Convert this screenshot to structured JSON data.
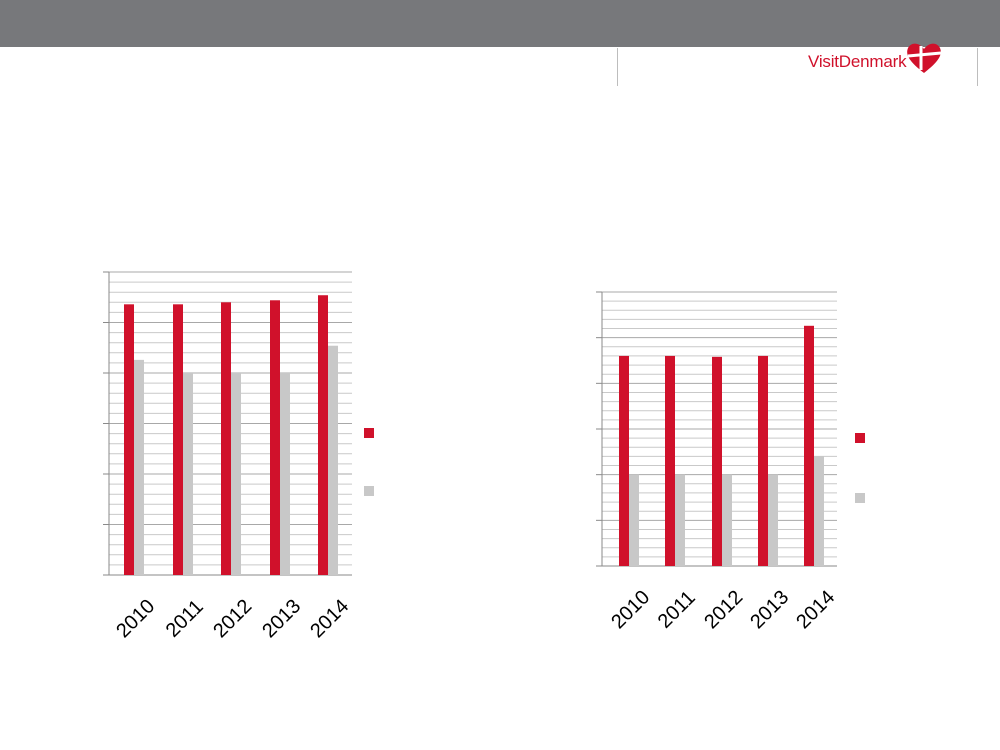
{
  "brand": {
    "name": "VisitDenmark",
    "accent_color": "#d0112b",
    "secondary_color": "#c8c8c8",
    "header_bar_color": "#77787b",
    "logo_icon": "heart-flag-icon"
  },
  "chart_data": [
    {
      "type": "bar",
      "title": "",
      "xlabel": "",
      "ylabel": "",
      "categories": [
        "2010",
        "2011",
        "2012",
        "2013",
        "2014"
      ],
      "ylim": [
        0,
        30
      ],
      "major_tick_step": 5,
      "minor_tick_step": 1,
      "grid": true,
      "legend": "right",
      "series": [
        {
          "color": "#d0112b",
          "values": [
            26.8,
            26.8,
            27.0,
            27.2,
            27.7
          ]
        },
        {
          "color": "#c8c8c8",
          "values": [
            21.3,
            20.0,
            20.0,
            20.0,
            22.7
          ]
        }
      ]
    },
    {
      "type": "bar",
      "title": "",
      "xlabel": "",
      "ylabel": "",
      "categories": [
        "2010",
        "2011",
        "2012",
        "2013",
        "2014"
      ],
      "ylim": [
        0,
        30
      ],
      "major_tick_step": 5,
      "minor_tick_step": 1,
      "grid": true,
      "legend": "right",
      "series": [
        {
          "color": "#d0112b",
          "values": [
            23.0,
            23.0,
            22.9,
            23.0,
            26.3
          ]
        },
        {
          "color": "#c8c8c8",
          "values": [
            10.0,
            10.0,
            10.0,
            10.0,
            12.0
          ]
        }
      ]
    }
  ]
}
